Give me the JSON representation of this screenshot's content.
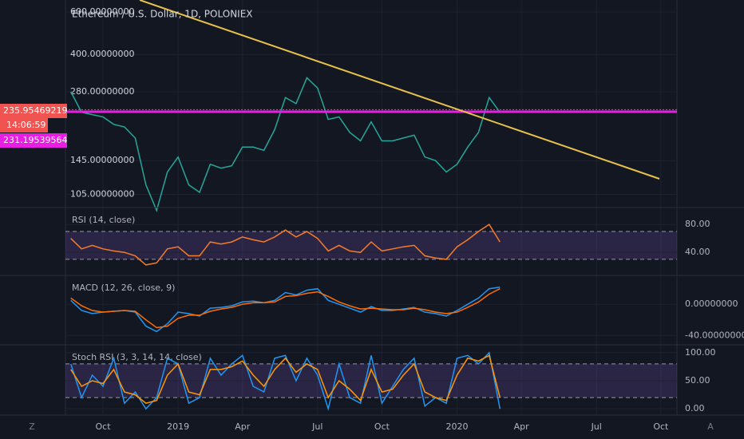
{
  "chart_data": [
    {
      "type": "line",
      "title": "Ethereum / U.S. Dollar, 1D, POLONIEX",
      "log_scale": true,
      "grid": true,
      "categories": [
        null,
        null,
        null,
        "Oct",
        null,
        null,
        null,
        null,
        null,
        null,
        "2019",
        null,
        null,
        null,
        null,
        null,
        "Apr",
        null,
        null,
        null,
        null,
        null,
        null,
        "Jul",
        null,
        null,
        null,
        null,
        null,
        "Oct",
        null,
        null,
        null,
        null,
        null,
        null,
        "2020",
        null,
        null,
        null,
        null,
        null,
        "Apr",
        null,
        null,
        null,
        null,
        null,
        null,
        "Jul",
        null,
        null,
        null,
        null,
        null,
        "Oct",
        null
      ],
      "series": [
        {
          "color": "#26a69a",
          "values": [
            280,
            230,
            225,
            220,
            205,
            200,
            180,
            115,
            90,
            130,
            150,
            115,
            107,
            140,
            135,
            138,
            165,
            165,
            160,
            195,
            265,
            250,
            320,
            290,
            215,
            220,
            190,
            175,
            210,
            175,
            175,
            180,
            185,
            150,
            145,
            130,
            140,
            165,
            190,
            265,
            230,
            null,
            null,
            null,
            null,
            null,
            null,
            null,
            null,
            null,
            null,
            null,
            null,
            null,
            null,
            null,
            null
          ]
        }
      ],
      "ylim": [
        94,
        673
      ],
      "yticks": [
        {
          "value": 600,
          "label": "600.00000000"
        },
        {
          "value": 400,
          "label": "400.00000000"
        },
        {
          "value": 280,
          "label": "280.00000000"
        },
        {
          "value": 145,
          "label": "145.00000000"
        },
        {
          "value": 105,
          "label": "105.00000000"
        }
      ],
      "price_labels": [
        {
          "value": 235.95469219,
          "label": "235.95469219",
          "color": "#f05350"
        },
        {
          "value": 231.19539564,
          "label": "231.19539564",
          "color": "#e91ee3"
        }
      ],
      "countdown": "14:06:59"
    },
    {
      "type": "line",
      "title": "RSI (14, close)",
      "bands": [
        30,
        70
      ],
      "band_color": "#7e57c2",
      "series": [
        {
          "color": "#f57c28",
          "values": [
            60,
            45,
            50,
            45,
            42,
            40,
            35,
            22,
            25,
            45,
            48,
            35,
            35,
            55,
            52,
            55,
            62,
            58,
            55,
            62,
            72,
            62,
            70,
            60,
            42,
            50,
            42,
            40,
            55,
            42,
            45,
            48,
            50,
            35,
            32,
            30,
            48,
            58,
            70,
            80,
            55,
            null,
            null,
            null,
            null,
            null,
            null,
            null,
            null,
            null,
            null,
            null,
            null,
            null,
            null,
            null,
            null
          ]
        }
      ],
      "ylim": [
        7,
        102
      ],
      "yticks": [
        {
          "value": 80,
          "label": "80.00"
        },
        {
          "value": 40,
          "label": "40.00"
        }
      ]
    },
    {
      "type": "line",
      "title": "MACD (12, 26, close, 9)",
      "series": [
        {
          "color": "#2196f3",
          "values": [
            5,
            -8,
            -12,
            -10,
            -9,
            -8,
            -10,
            -28,
            -35,
            -25,
            -10,
            -12,
            -15,
            -5,
            -4,
            -2,
            3,
            4,
            2,
            5,
            15,
            12,
            18,
            20,
            5,
            0,
            -5,
            -10,
            -3,
            -8,
            -8,
            -6,
            -4,
            -10,
            -12,
            -15,
            -8,
            0,
            8,
            20,
            22,
            null,
            null,
            null,
            null,
            null,
            null,
            null,
            null,
            null,
            null,
            null,
            null,
            null,
            null,
            null,
            null
          ]
        },
        {
          "color": "#ff6d00",
          "values": [
            8,
            -2,
            -8,
            -10,
            -9,
            -8,
            -9,
            -20,
            -30,
            -28,
            -18,
            -14,
            -14,
            -9,
            -6,
            -4,
            0,
            2,
            2,
            3,
            10,
            11,
            14,
            16,
            10,
            3,
            -2,
            -6,
            -5,
            -6,
            -7,
            -7,
            -5,
            -7,
            -10,
            -12,
            -10,
            -4,
            3,
            13,
            20,
            null,
            null,
            null,
            null,
            null,
            null,
            null,
            null,
            null,
            null,
            null,
            null,
            null,
            null,
            null,
            null
          ]
        }
      ],
      "ylim": [
        -52,
        35
      ],
      "yticks": [
        {
          "value": 0,
          "label": "0.00000000"
        },
        {
          "value": -40,
          "label": "-40.00000000"
        }
      ]
    },
    {
      "type": "line",
      "title": "Stoch RSI (3, 3, 14, 14, close)",
      "bands": [
        20,
        80
      ],
      "band_color": "#7e57c2",
      "series": [
        {
          "color": "#2196f3",
          "values": [
            80,
            20,
            60,
            40,
            90,
            10,
            30,
            0,
            20,
            90,
            80,
            10,
            20,
            90,
            60,
            80,
            95,
            40,
            30,
            90,
            95,
            50,
            90,
            60,
            0,
            80,
            20,
            10,
            95,
            10,
            40,
            70,
            90,
            5,
            20,
            10,
            90,
            95,
            80,
            100,
            0,
            null,
            null,
            null,
            null,
            null,
            null,
            null,
            null,
            null,
            null,
            null,
            null,
            null,
            null,
            null,
            null
          ]
        },
        {
          "color": "#ff9800",
          "values": [
            70,
            40,
            50,
            45,
            70,
            30,
            25,
            10,
            15,
            60,
            80,
            30,
            25,
            70,
            70,
            75,
            85,
            60,
            40,
            70,
            90,
            65,
            80,
            70,
            20,
            50,
            35,
            15,
            70,
            30,
            35,
            60,
            80,
            30,
            20,
            15,
            60,
            90,
            85,
            95,
            20,
            null,
            null,
            null,
            null,
            null,
            null,
            null,
            null,
            null,
            null,
            null,
            null,
            null,
            null,
            null,
            null
          ]
        }
      ],
      "ylim": [
        -11,
        111
      ],
      "yticks": [
        {
          "value": 100,
          "label": "100.00"
        },
        {
          "value": 50,
          "label": "50.00"
        },
        {
          "value": 0,
          "label": "0.00"
        }
      ]
    }
  ],
  "controls": {
    "left": "Z",
    "right": "A"
  }
}
